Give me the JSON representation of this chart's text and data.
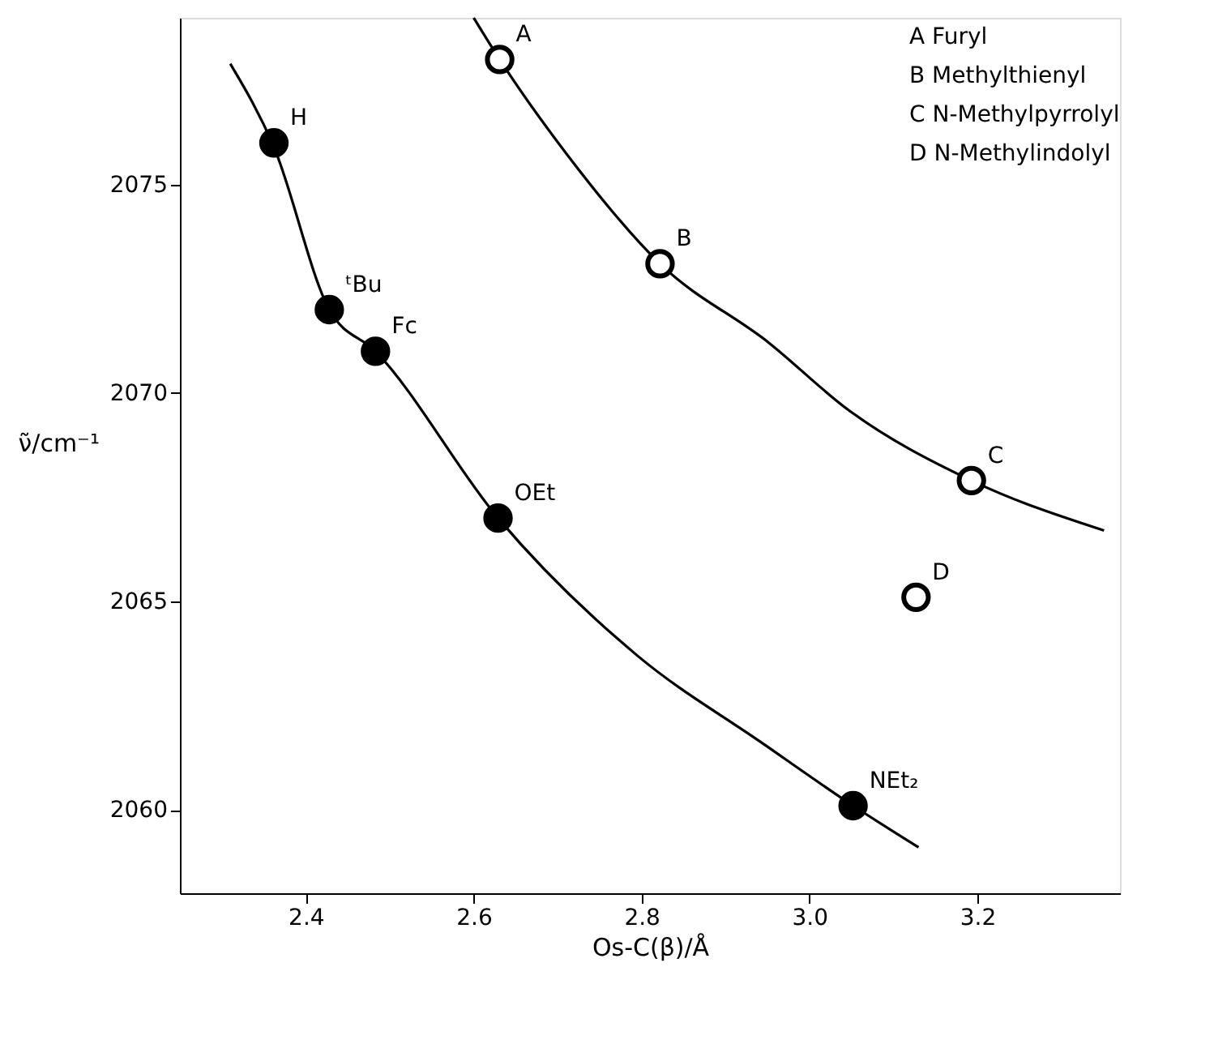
{
  "chart_data": {
    "type": "scatter",
    "xlabel": "Os-C(β)/Å",
    "ylabel": "ν̃/cm⁻¹",
    "xlim": [
      2.25,
      3.37
    ],
    "ylim": [
      2058,
      2079
    ],
    "xticks": [
      2.4,
      2.6,
      2.8,
      {
        "value": 3.0,
        "label": "3.0"
      },
      3.2
    ],
    "yticks": [
      2060,
      2065,
      2070,
      2075
    ],
    "grid": false,
    "marker": "circle",
    "series": [
      {
        "type": "line",
        "color": "#000000",
        "marker": "none",
        "line_style": "solid",
        "x": [
          2.31,
          2.362,
          2.428,
          2.483,
          2.629,
          2.795,
          2.944,
          3.052,
          3.13
        ],
        "values": [
          2077.9,
          2075.9,
          2072.0,
          2071.0,
          2067.0,
          2063.7,
          2061.6,
          2060.1,
          2059.1
        ]
      },
      {
        "type": "line",
        "color": "#000000",
        "marker": "none",
        "line_style": "solid",
        "x": [
          2.6,
          2.631,
          2.712,
          2.822,
          2.952,
          3.046,
          3.193,
          3.351
        ],
        "values": [
          2079.0,
          2078.0,
          2075.7,
          2073.1,
          2071.2,
          2069.6,
          2067.9,
          2066.7
        ]
      },
      {
        "color": "#000000",
        "x": [
          2.362,
          2.428,
          2.483,
          2.629,
          3.052
        ],
        "values": [
          2076.0,
          2072.0,
          2071.0,
          2067.0,
          2060.1
        ]
      },
      {
        "color": "#ffffff",
        "x": [
          2.631,
          2.822,
          3.193,
          3.127
        ],
        "values": [
          2078.0,
          2073.1,
          2067.9,
          2065.1
        ]
      }
    ],
    "annotations": [
      {
        "text": "H",
        "x": 2.362,
        "y": 2076.0
      },
      {
        "text": "ᵗBu",
        "x": 2.428,
        "y": 2072.0
      },
      {
        "text": "Fc",
        "x": 2.483,
        "y": 2071.0
      },
      {
        "text": "OEt",
        "x": 2.629,
        "y": 2067.0
      },
      {
        "text": "NEt₂",
        "x": 3.052,
        "y": 2060.1
      },
      {
        "text": "A",
        "x": 2.631,
        "y": 2078.0
      },
      {
        "text": "B",
        "x": 2.822,
        "y": 2073.1
      },
      {
        "text": "C",
        "x": 3.193,
        "y": 2067.9
      },
      {
        "text": "D",
        "x": 3.127,
        "y": 2065.1
      },
      "A   Furyl",
      "B   Methylthienyl",
      "C   N-Methylpyrrolyl",
      "D   N-Methylindolyl"
    ]
  }
}
